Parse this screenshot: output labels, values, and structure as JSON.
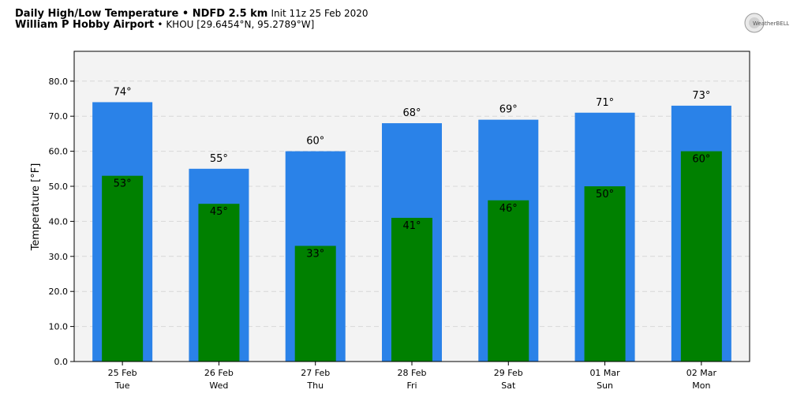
{
  "header": {
    "line1_bold": "Daily High/Low Temperature • NDFD 2.5 km",
    "line1_init": "Init 11z 25 Feb 2020",
    "line2_bold": "William P Hobby Airport",
    "line2_rest": "• KHOU [29.6454°N, 95.2789°W]",
    "logo_text": "WeatherBELL"
  },
  "colors": {
    "high": "#2a82e8",
    "low": "#008000",
    "plot_bg": "#f3f3f3",
    "grid": "#d8d8d8"
  },
  "chart_data": {
    "type": "bar",
    "title": "",
    "xlabel": "",
    "ylabel": "Temperature [°F]",
    "ylim": [
      0,
      85
    ],
    "yticks": [
      "0.0",
      "10.0",
      "20.0",
      "30.0",
      "40.0",
      "50.0",
      "60.0",
      "70.0",
      "80.0"
    ],
    "grid": "horizontal dashed",
    "categories": [
      {
        "date": "25 Feb",
        "day": "Tue"
      },
      {
        "date": "26 Feb",
        "day": "Wed"
      },
      {
        "date": "27 Feb",
        "day": "Thu"
      },
      {
        "date": "28 Feb",
        "day": "Fri"
      },
      {
        "date": "29 Feb",
        "day": "Sat"
      },
      {
        "date": "01 Mar",
        "day": "Sun"
      },
      {
        "date": "02 Mar",
        "day": "Mon"
      }
    ],
    "series": [
      {
        "values": [
          74,
          55,
          60,
          68,
          69,
          71,
          73
        ],
        "labels": [
          "74°",
          "55°",
          "60°",
          "68°",
          "69°",
          "71°",
          "73°"
        ]
      },
      {
        "values": [
          53,
          45,
          33,
          41,
          46,
          50,
          60
        ],
        "labels": [
          "53°",
          "45°",
          "33°",
          "41°",
          "46°",
          "50°",
          "60°"
        ]
      }
    ]
  }
}
